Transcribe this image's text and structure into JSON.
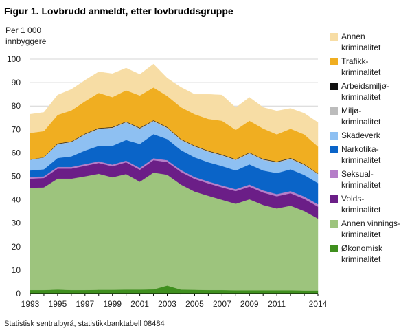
{
  "figure": {
    "title": "Figur 1.  Lovbrudd anmeldt, etter lovbruddsgruppe",
    "source": "Statistisk sentralbyrå, statistikkbanktabell 08484"
  },
  "chart_data": {
    "type": "area",
    "stacked": true,
    "ylabel": "Per 1 000 innbyggere",
    "ylabel_lines": [
      "Per 1 000",
      "innbyggere"
    ],
    "ylim": [
      0,
      100
    ],
    "yticks": [
      0,
      10,
      20,
      30,
      40,
      50,
      60,
      70,
      80,
      90,
      100
    ],
    "xlim": [
      1993,
      2014
    ],
    "xtick_labels": [
      1993,
      1995,
      1997,
      1999,
      2001,
      2003,
      2005,
      2007,
      2009,
      2011,
      2014
    ],
    "grid": "horizontal",
    "legend_position": "right",
    "x": [
      1993,
      1994,
      1995,
      1996,
      1997,
      1998,
      1999,
      2000,
      2001,
      2002,
      2003,
      2004,
      2005,
      2006,
      2007,
      2008,
      2009,
      2010,
      2011,
      2012,
      2013,
      2014
    ],
    "series": [
      {
        "name": "Økonomisk kriminalitet",
        "color": "#3f8f1e",
        "values": [
          1.5,
          1.5,
          1.7,
          1.5,
          1.5,
          1.6,
          1.6,
          1.7,
          1.7,
          1.8,
          3.4,
          1.7,
          1.6,
          1.5,
          1.5,
          1.4,
          1.4,
          1.4,
          1.4,
          1.4,
          1.3,
          1.3
        ]
      },
      {
        "name": "Annen vinnings-kriminalitet",
        "color": "#9dc47d",
        "values": [
          43.5,
          43.8,
          47.3,
          47.5,
          48.5,
          49.5,
          48.0,
          49.3,
          46.0,
          49.8,
          47.3,
          44.8,
          41.9,
          40.2,
          38.5,
          36.9,
          38.8,
          36.4,
          34.9,
          36.1,
          33.9,
          30.7
        ]
      },
      {
        "name": "Volds-kriminalitet",
        "color": "#6b1e87",
        "values": [
          4.0,
          4.0,
          4.3,
          4.3,
          4.5,
          4.6,
          4.7,
          5.0,
          5.1,
          5.3,
          5.4,
          5.4,
          5.4,
          5.3,
          5.3,
          5.4,
          5.4,
          5.3,
          5.2,
          5.3,
          5.2,
          5.1
        ]
      },
      {
        "name": "Seksual-kriminalitet",
        "color": "#b57ec8",
        "values": [
          0.7,
          0.7,
          0.7,
          0.7,
          0.7,
          0.7,
          0.7,
          0.7,
          0.8,
          0.8,
          0.8,
          0.8,
          0.8,
          0.8,
          0.8,
          0.8,
          0.9,
          0.9,
          0.9,
          0.9,
          1.0,
          1.0
        ]
      },
      {
        "name": "Narkotika-kriminalitet",
        "color": "#0a64c8",
        "values": [
          2.8,
          3.0,
          3.8,
          4.5,
          5.8,
          6.6,
          8.0,
          8.8,
          10.2,
          10.3,
          9.0,
          8.5,
          8.4,
          8.2,
          8.3,
          8.0,
          8.6,
          8.5,
          9.0,
          9.3,
          9.2,
          9.0
        ]
      },
      {
        "name": "Skadeverk",
        "color": "#8ec0f2",
        "values": [
          4.5,
          5.0,
          5.8,
          6.0,
          6.7,
          7.1,
          7.5,
          7.4,
          6.4,
          5.4,
          4.6,
          4.2,
          4.5,
          4.4,
          4.4,
          4.3,
          4.6,
          4.4,
          4.4,
          4.3,
          4.1,
          3.7
        ]
      },
      {
        "name": "Miljø-kriminalitet",
        "color": "#bcbcbc",
        "values": [
          0.1,
          0.1,
          0.2,
          0.2,
          0.3,
          0.3,
          0.3,
          0.3,
          0.3,
          0.3,
          0.3,
          0.3,
          0.3,
          0.3,
          0.3,
          0.3,
          0.3,
          0.3,
          0.3,
          0.3,
          0.3,
          0.3
        ]
      },
      {
        "name": "Arbeidsmiljø-kriminalitet",
        "color": "#111111",
        "values": [
          0.0,
          0.1,
          0.2,
          0.2,
          0.2,
          0.2,
          0.2,
          0.2,
          0.2,
          0.2,
          0.2,
          0.2,
          0.2,
          0.2,
          0.2,
          0.2,
          0.2,
          0.2,
          0.2,
          0.2,
          0.2,
          0.1
        ]
      },
      {
        "name": "Trafikk-kriminalitet",
        "color": "#f0ae21",
        "values": [
          11.4,
          11.1,
          12.2,
          13.2,
          13.8,
          15.0,
          12.8,
          13.3,
          13.8,
          14.0,
          13.3,
          13.6,
          13.4,
          13.6,
          14.4,
          12.5,
          13.5,
          13.0,
          11.6,
          12.5,
          12.7,
          11.5
        ]
      },
      {
        "name": "Annen kriminalitet",
        "color": "#f7dda5",
        "values": [
          8.0,
          8.0,
          8.5,
          9.0,
          9.0,
          9.0,
          10.0,
          9.5,
          9.0,
          10.0,
          7.6,
          8.5,
          8.5,
          10.5,
          11.0,
          9.5,
          10.0,
          9.0,
          10.0,
          8.7,
          9.0,
          10.3
        ]
      }
    ]
  }
}
